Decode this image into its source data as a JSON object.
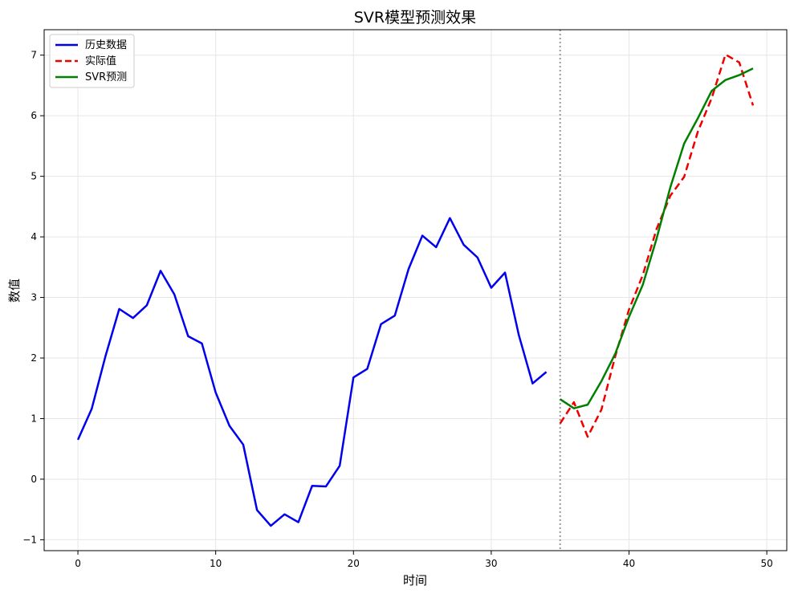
{
  "chart_data": {
    "type": "line",
    "title": "SVR模型预测效果",
    "xlabel": "时间",
    "ylabel": "数值",
    "xlim": [
      -2.45,
      51.45
    ],
    "ylim": [
      -1.18,
      7.42
    ],
    "xticks": [
      0,
      10,
      20,
      30,
      40,
      50
    ],
    "yticks": [
      -1,
      0,
      1,
      2,
      3,
      4,
      5,
      6,
      7
    ],
    "grid": true,
    "legend_position": "top-left",
    "vline": {
      "x": 35,
      "color": "#999999",
      "style": "dotted"
    },
    "series": [
      {
        "name": "历史数据",
        "color": "#0000ee",
        "dash": "solid",
        "x": [
          0,
          1,
          2,
          3,
          4,
          5,
          6,
          7,
          8,
          9,
          10,
          11,
          12,
          13,
          14,
          15,
          16,
          17,
          18,
          19,
          20,
          21,
          22,
          23,
          24,
          25,
          26,
          27,
          28,
          29,
          30,
          31,
          32,
          33,
          34
        ],
        "y": [
          0.65,
          1.16,
          2.03,
          2.81,
          2.66,
          2.87,
          3.44,
          3.05,
          2.36,
          2.24,
          1.43,
          0.88,
          0.57,
          -0.51,
          -0.77,
          -0.58,
          -0.71,
          -0.11,
          -0.12,
          0.22,
          1.68,
          1.82,
          2.56,
          2.7,
          3.47,
          4.02,
          3.83,
          4.31,
          3.87,
          3.66,
          3.16,
          3.41,
          2.38,
          1.58,
          1.77
        ]
      },
      {
        "name": "实际值",
        "color": "#ee0000",
        "dash": "dashed",
        "x": [
          35,
          36,
          37,
          38,
          39,
          40,
          41,
          42,
          43,
          44,
          45,
          46,
          47,
          48,
          49
        ],
        "y": [
          0.92,
          1.27,
          0.7,
          1.15,
          2.03,
          2.8,
          3.37,
          4.13,
          4.68,
          4.99,
          5.74,
          6.29,
          7.01,
          6.88,
          6.17
        ]
      },
      {
        "name": "SVR预测",
        "color": "#008000",
        "dash": "solid",
        "x": [
          35,
          36,
          37,
          38,
          39,
          40,
          41,
          42,
          43,
          44,
          45,
          46,
          47,
          48,
          49
        ],
        "y": [
          1.32,
          1.17,
          1.23,
          1.62,
          2.07,
          2.68,
          3.21,
          3.97,
          4.82,
          5.54,
          5.96,
          6.41,
          6.59,
          6.67,
          6.78
        ]
      }
    ]
  }
}
